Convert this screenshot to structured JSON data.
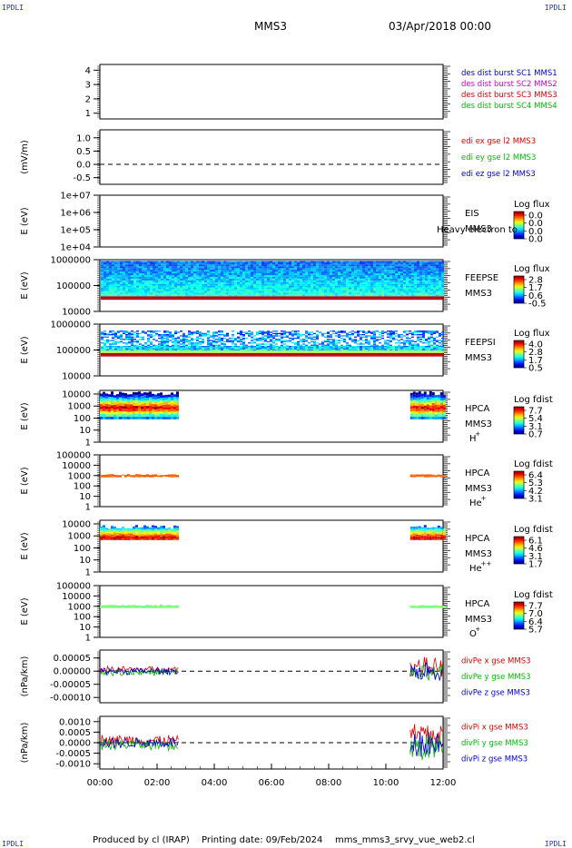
{
  "corner_text": "IPDLI",
  "header": {
    "spacecraft": "MMS3",
    "date": "03/Apr/2018 00:00"
  },
  "footer": {
    "produced_by": "Produced by cl (IRAP)",
    "printing_date": "Printing date: 09/Feb/2024",
    "file": "mms_mms3_srvy_vue_web2.cl"
  },
  "colors": {
    "mms1": "#0000cc",
    "mms2": "#cc00cc",
    "mms3": "#dd0000",
    "mms4": "#00bb00",
    "x": "#dd0000",
    "y": "#00bb00",
    "z": "#0000cc"
  },
  "chart_data": [
    {
      "type": "line",
      "id": "des-dist",
      "ylabel": "",
      "yticks": [
        "4",
        "3",
        "2",
        "1"
      ],
      "ylim": [
        0.6,
        4.4
      ],
      "legend": [
        {
          "text": "des dist burst SC1 MMS1",
          "color": "#0000cc"
        },
        {
          "text": "des dist burst SC2 MMS2",
          "color": "#cc00cc"
        },
        {
          "text": "des dist burst SC3 MMS3",
          "color": "#dd0000"
        },
        {
          "text": "des dist burst SC4 MMS4",
          "color": "#00bb00"
        }
      ]
    },
    {
      "type": "line",
      "id": "edi-e",
      "ylabel": "(mV/m)",
      "yticks": [
        "1.0",
        "0.5",
        "0.0",
        "-0.5"
      ],
      "ylim": [
        -0.75,
        1.3
      ],
      "zero_line": true,
      "legend": [
        {
          "text": "edi ex gse l2 MMS3",
          "color": "#dd0000"
        },
        {
          "text": "edi ey gse l2 MMS3",
          "color": "#00bb00"
        },
        {
          "text": "edi ez gse l2 MMS3",
          "color": "#0000cc"
        }
      ]
    },
    {
      "type": "heatmap",
      "id": "eis",
      "ylabel": "E (eV)",
      "yticks": [
        "1e+07",
        "1e+06",
        "1e+05",
        "1e+04"
      ],
      "log_range": [
        4,
        7
      ],
      "side_label": [
        "EIS",
        "MMS3"
      ],
      "overlap_text": "Heavy electron to",
      "colorbar_title": "Log flux",
      "colorbar_ticks": [
        "0.0",
        "0.0",
        "0.0",
        "0.0"
      ],
      "data": []
    },
    {
      "type": "heatmap",
      "id": "feepse",
      "ylabel": "E (eV)",
      "yticks": [
        "1000000",
        "100000",
        "10000"
      ],
      "log_range": [
        4,
        6
      ],
      "side_label": [
        "FEEPSE",
        "MMS3"
      ],
      "colorbar_title": "Log flux",
      "colorbar_ticks": [
        "2.8",
        "1.7",
        "0.6",
        "-0.5"
      ],
      "coverage": [
        [
          0,
          12
        ]
      ],
      "energy_range_log": [
        4.45,
        5.95
      ]
    },
    {
      "type": "heatmap",
      "id": "feepsi",
      "ylabel": "E (eV)",
      "yticks": [
        "1000000",
        "100000",
        "10000"
      ],
      "log_range": [
        4,
        6
      ],
      "side_label": [
        "FEEPSI",
        "MMS3"
      ],
      "colorbar_title": "Log flux",
      "colorbar_ticks": [
        "4.0",
        "2.8",
        "1.7",
        "0.5"
      ],
      "coverage": [
        [
          0,
          12
        ]
      ],
      "energy_range_log": [
        4.75,
        5.75
      ]
    },
    {
      "type": "heatmap",
      "id": "hpca-h",
      "ylabel": "E (eV)",
      "yticks": [
        "10000",
        "1000",
        "100",
        "10",
        "1"
      ],
      "log_range": [
        0,
        4.3
      ],
      "side_label": [
        "HPCA",
        "MMS3",
        "H",
        "+"
      ],
      "colorbar_title": "Log fdist",
      "colorbar_ticks": [
        "7.7",
        "5.4",
        "3.1",
        "0.7"
      ],
      "coverage": [
        [
          0,
          2.75
        ],
        [
          10.85,
          12
        ]
      ]
    },
    {
      "type": "heatmap",
      "id": "hpca-he",
      "ylabel": "E (eV)",
      "yticks": [
        "100000",
        "10000",
        "1000",
        "100",
        "10",
        "1"
      ],
      "log_range": [
        0,
        5
      ],
      "side_label": [
        "HPCA",
        "MMS3",
        "He",
        "+"
      ],
      "colorbar_title": "Log fdist",
      "colorbar_ticks": [
        "6.4",
        "5.3",
        "4.2",
        "3.1"
      ],
      "coverage": [
        [
          0,
          2.75
        ],
        [
          10.85,
          12
        ]
      ]
    },
    {
      "type": "heatmap",
      "id": "hpca-he2",
      "ylabel": "E (eV)",
      "yticks": [
        "10000",
        "1000",
        "100",
        "10",
        "1"
      ],
      "log_range": [
        0,
        4.3
      ],
      "side_label": [
        "HPCA",
        "MMS3",
        "He",
        "++"
      ],
      "colorbar_title": "Log fdist",
      "colorbar_ticks": [
        "6.1",
        "4.6",
        "3.1",
        "1.7"
      ],
      "coverage": [
        [
          0,
          2.75
        ],
        [
          10.85,
          12
        ]
      ]
    },
    {
      "type": "heatmap",
      "id": "hpca-o",
      "ylabel": "E (eV)",
      "yticks": [
        "100000",
        "10000",
        "1000",
        "100",
        "10",
        "1"
      ],
      "log_range": [
        0,
        5
      ],
      "side_label": [
        "HPCA",
        "MMS3",
        "O",
        "+"
      ],
      "colorbar_title": "Log fdist",
      "colorbar_ticks": [
        "7.7",
        "7.0",
        "6.4",
        "5.7"
      ],
      "coverage": [
        [
          0,
          2.75
        ],
        [
          10.85,
          12
        ]
      ]
    },
    {
      "type": "line",
      "id": "divpe",
      "ylabel": "(nPa/km)",
      "yticks": [
        "0.00005",
        "0.00000",
        "-0.00005",
        "-0.00010"
      ],
      "ylim": [
        -0.00012,
        8e-05
      ],
      "zero_line": true,
      "coverage": [
        [
          0,
          2.75
        ],
        [
          10.85,
          12
        ]
      ],
      "amplitude": [
        1.5e-05,
        4e-05
      ],
      "legend": [
        {
          "text": "divPe x gse MMS3",
          "color": "#dd0000"
        },
        {
          "text": "divPe y gse MMS3",
          "color": "#00bb00"
        },
        {
          "text": "divPe z gse MMS3",
          "color": "#0000cc"
        }
      ]
    },
    {
      "type": "line",
      "id": "divpi",
      "ylabel": "(nPa/km)",
      "yticks": [
        "0.0010",
        "0.0005",
        "0.0000",
        "-0.0005",
        "-0.0010"
      ],
      "ylim": [
        -0.00125,
        0.00125
      ],
      "zero_line": true,
      "coverage": [
        [
          0,
          2.75
        ],
        [
          10.85,
          12
        ]
      ],
      "amplitude": [
        0.0003,
        0.0008
      ],
      "legend": [
        {
          "text": "divPi x gse MMS3",
          "color": "#dd0000"
        },
        {
          "text": "divPi y gse MMS3",
          "color": "#00bb00"
        },
        {
          "text": "divPi z gse MMS3",
          "color": "#0000cc"
        }
      ]
    }
  ],
  "x_axis": {
    "range_hours": [
      0,
      12
    ],
    "ticks": [
      "00:00",
      "02:00",
      "04:00",
      "06:00",
      "08:00",
      "10:00",
      "12:00"
    ]
  }
}
